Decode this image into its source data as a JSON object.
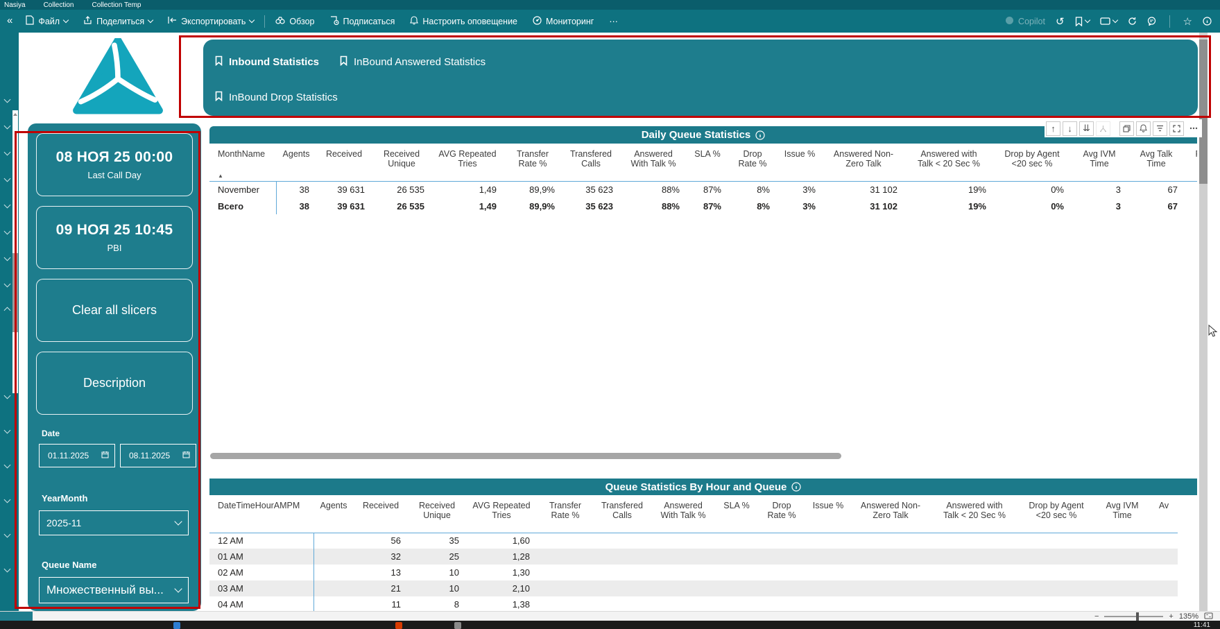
{
  "colors": {
    "toolbar_teal": "#0e7280",
    "panel_teal": "#1e7d8d",
    "annotation_red": "#c00000",
    "separator_blue": "#5fa8d8",
    "logo_teal": "#14a5bc"
  },
  "browser_tabs": {
    "items": [
      {
        "label": "Nasiya"
      },
      {
        "label": "Collection"
      },
      {
        "label": "Collection Temp"
      }
    ]
  },
  "toolbar": {
    "collapse_glyph": "«",
    "left": [
      {
        "label": "Файл"
      },
      {
        "label": "Поделиться"
      },
      {
        "label": "Экспортировать"
      },
      {
        "label": "Обзор"
      },
      {
        "label": "Подписаться"
      },
      {
        "label": "Настроить оповещение"
      },
      {
        "label": "Мониторинг"
      }
    ],
    "more_glyph": "⋯",
    "copilot_label": "Copilot",
    "undo_glyph": "↺",
    "star_glyph": "☆"
  },
  "nav_bookmarks": {
    "items": [
      {
        "label": "Inbound Statistics"
      },
      {
        "label": "InBound Answered Statistics"
      },
      {
        "label": "InBound Drop Statistics"
      }
    ]
  },
  "sidebar": {
    "cards": [
      {
        "title": "08 НОЯ 25 00:00",
        "subtitle": "Last Call Day"
      },
      {
        "title": "09 НОЯ 25 10:45",
        "subtitle": "PBI"
      },
      {
        "title": "Clear all slicers",
        "subtitle": ""
      },
      {
        "title": "Description",
        "subtitle": ""
      }
    ],
    "date_label": "Date",
    "date_from": "01.11.2025",
    "date_to": "08.11.2025",
    "yearmonth_label": "YearMonth",
    "yearmonth_value": "2025-11",
    "queue_label": "Queue Name",
    "queue_value": "Множественный вы..."
  },
  "visual_header": {
    "up_glyph": "↑",
    "down_glyph": "↓",
    "expand_glyph": "⇊"
  },
  "table1": {
    "title": "Daily Queue Statistics",
    "sort_glyph": "▲",
    "headers": [
      "MonthName",
      "Agents",
      "Received",
      "Received\nUnique",
      "AVG Repeated\nTries",
      "Transfer\nRate %",
      "Transfered\nCalls",
      "Answered\nWith Talk %",
      "SLA %",
      "Drop\nRate %",
      "Issue %",
      "Answered Non-\nZero Talk",
      "Answered with\nTalk < 20 Sec %",
      "Drop by Agent\n<20 sec %",
      "Avg IVM\nTime",
      "Avg Talk\nTime",
      "R"
    ],
    "rows": [
      [
        "November",
        "38",
        "39 631",
        "26 535",
        "1,49",
        "89,9%",
        "35 623",
        "88%",
        "87%",
        "8%",
        "3%",
        "31 102",
        "19%",
        "0%",
        "3",
        "67",
        ""
      ],
      [
        "Всего",
        "38",
        "39 631",
        "26 535",
        "1,49",
        "89,9%",
        "35 623",
        "88%",
        "87%",
        "8%",
        "3%",
        "31 102",
        "19%",
        "0%",
        "3",
        "67",
        ""
      ]
    ],
    "bold_rows": [
      1
    ]
  },
  "table2": {
    "title": "Queue Statistics By Hour and Queue",
    "headers": [
      "DateTimeHourAMPM",
      "Agents",
      "Received",
      "Received\nUnique",
      "AVG Repeated\nTries",
      "Transfer\nRate %",
      "Transfered\nCalls",
      "Answered\nWith Talk %",
      "SLA %",
      "Drop\nRate %",
      "Issue %",
      "Answered Non-\nZero Talk",
      "Answered with\nTalk < 20 Sec %",
      "Drop by Agent\n<20 sec %",
      "Avg IVM\nTime",
      "Av"
    ],
    "rows": [
      [
        "12 AM",
        "",
        "56",
        "35",
        "1,60",
        "",
        "",
        "",
        "",
        "",
        "",
        "",
        "",
        "",
        "",
        ""
      ],
      [
        "01 AM",
        "",
        "32",
        "25",
        "1,28",
        "",
        "",
        "",
        "",
        "",
        "",
        "",
        "",
        "",
        "",
        ""
      ],
      [
        "02 AM",
        "",
        "13",
        "10",
        "1,30",
        "",
        "",
        "",
        "",
        "",
        "",
        "",
        "",
        "",
        "",
        ""
      ],
      [
        "03 AM",
        "",
        "21",
        "10",
        "2,10",
        "",
        "",
        "",
        "",
        "",
        "",
        "",
        "",
        "",
        "",
        ""
      ],
      [
        "04 AM",
        "",
        "11",
        "8",
        "1,38",
        "",
        "",
        "",
        "",
        "",
        "",
        "",
        "",
        "",
        "",
        ""
      ]
    ],
    "bold_rows": []
  },
  "statusbar": {
    "minus_glyph": "−",
    "plus_glyph": "+",
    "zoom_level": "135%"
  },
  "taskbar": {
    "clock": "11:41"
  }
}
